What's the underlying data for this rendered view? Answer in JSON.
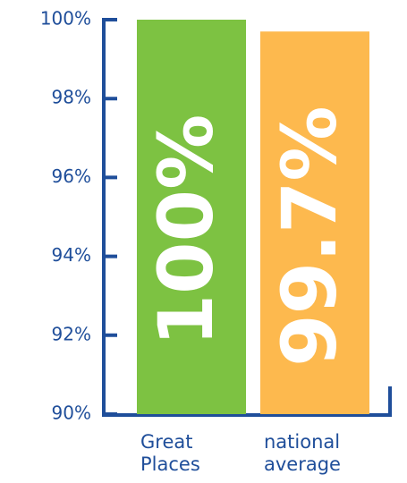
{
  "chart_data": {
    "type": "bar",
    "categories": [
      "Great Places",
      "national average"
    ],
    "values": [
      100,
      99.7
    ],
    "value_labels": [
      "100%",
      "99.7%"
    ],
    "colors": [
      "#7dc242",
      "#fdb94e"
    ],
    "ylim": [
      90,
      100
    ],
    "yticks": [
      {
        "value": 90,
        "label": "90%"
      },
      {
        "value": 92,
        "label": "92%"
      },
      {
        "value": 94,
        "label": "94%"
      },
      {
        "value": 96,
        "label": "96%"
      },
      {
        "value": 98,
        "label": "98%"
      },
      {
        "value": 100,
        "label": "100%"
      }
    ]
  }
}
